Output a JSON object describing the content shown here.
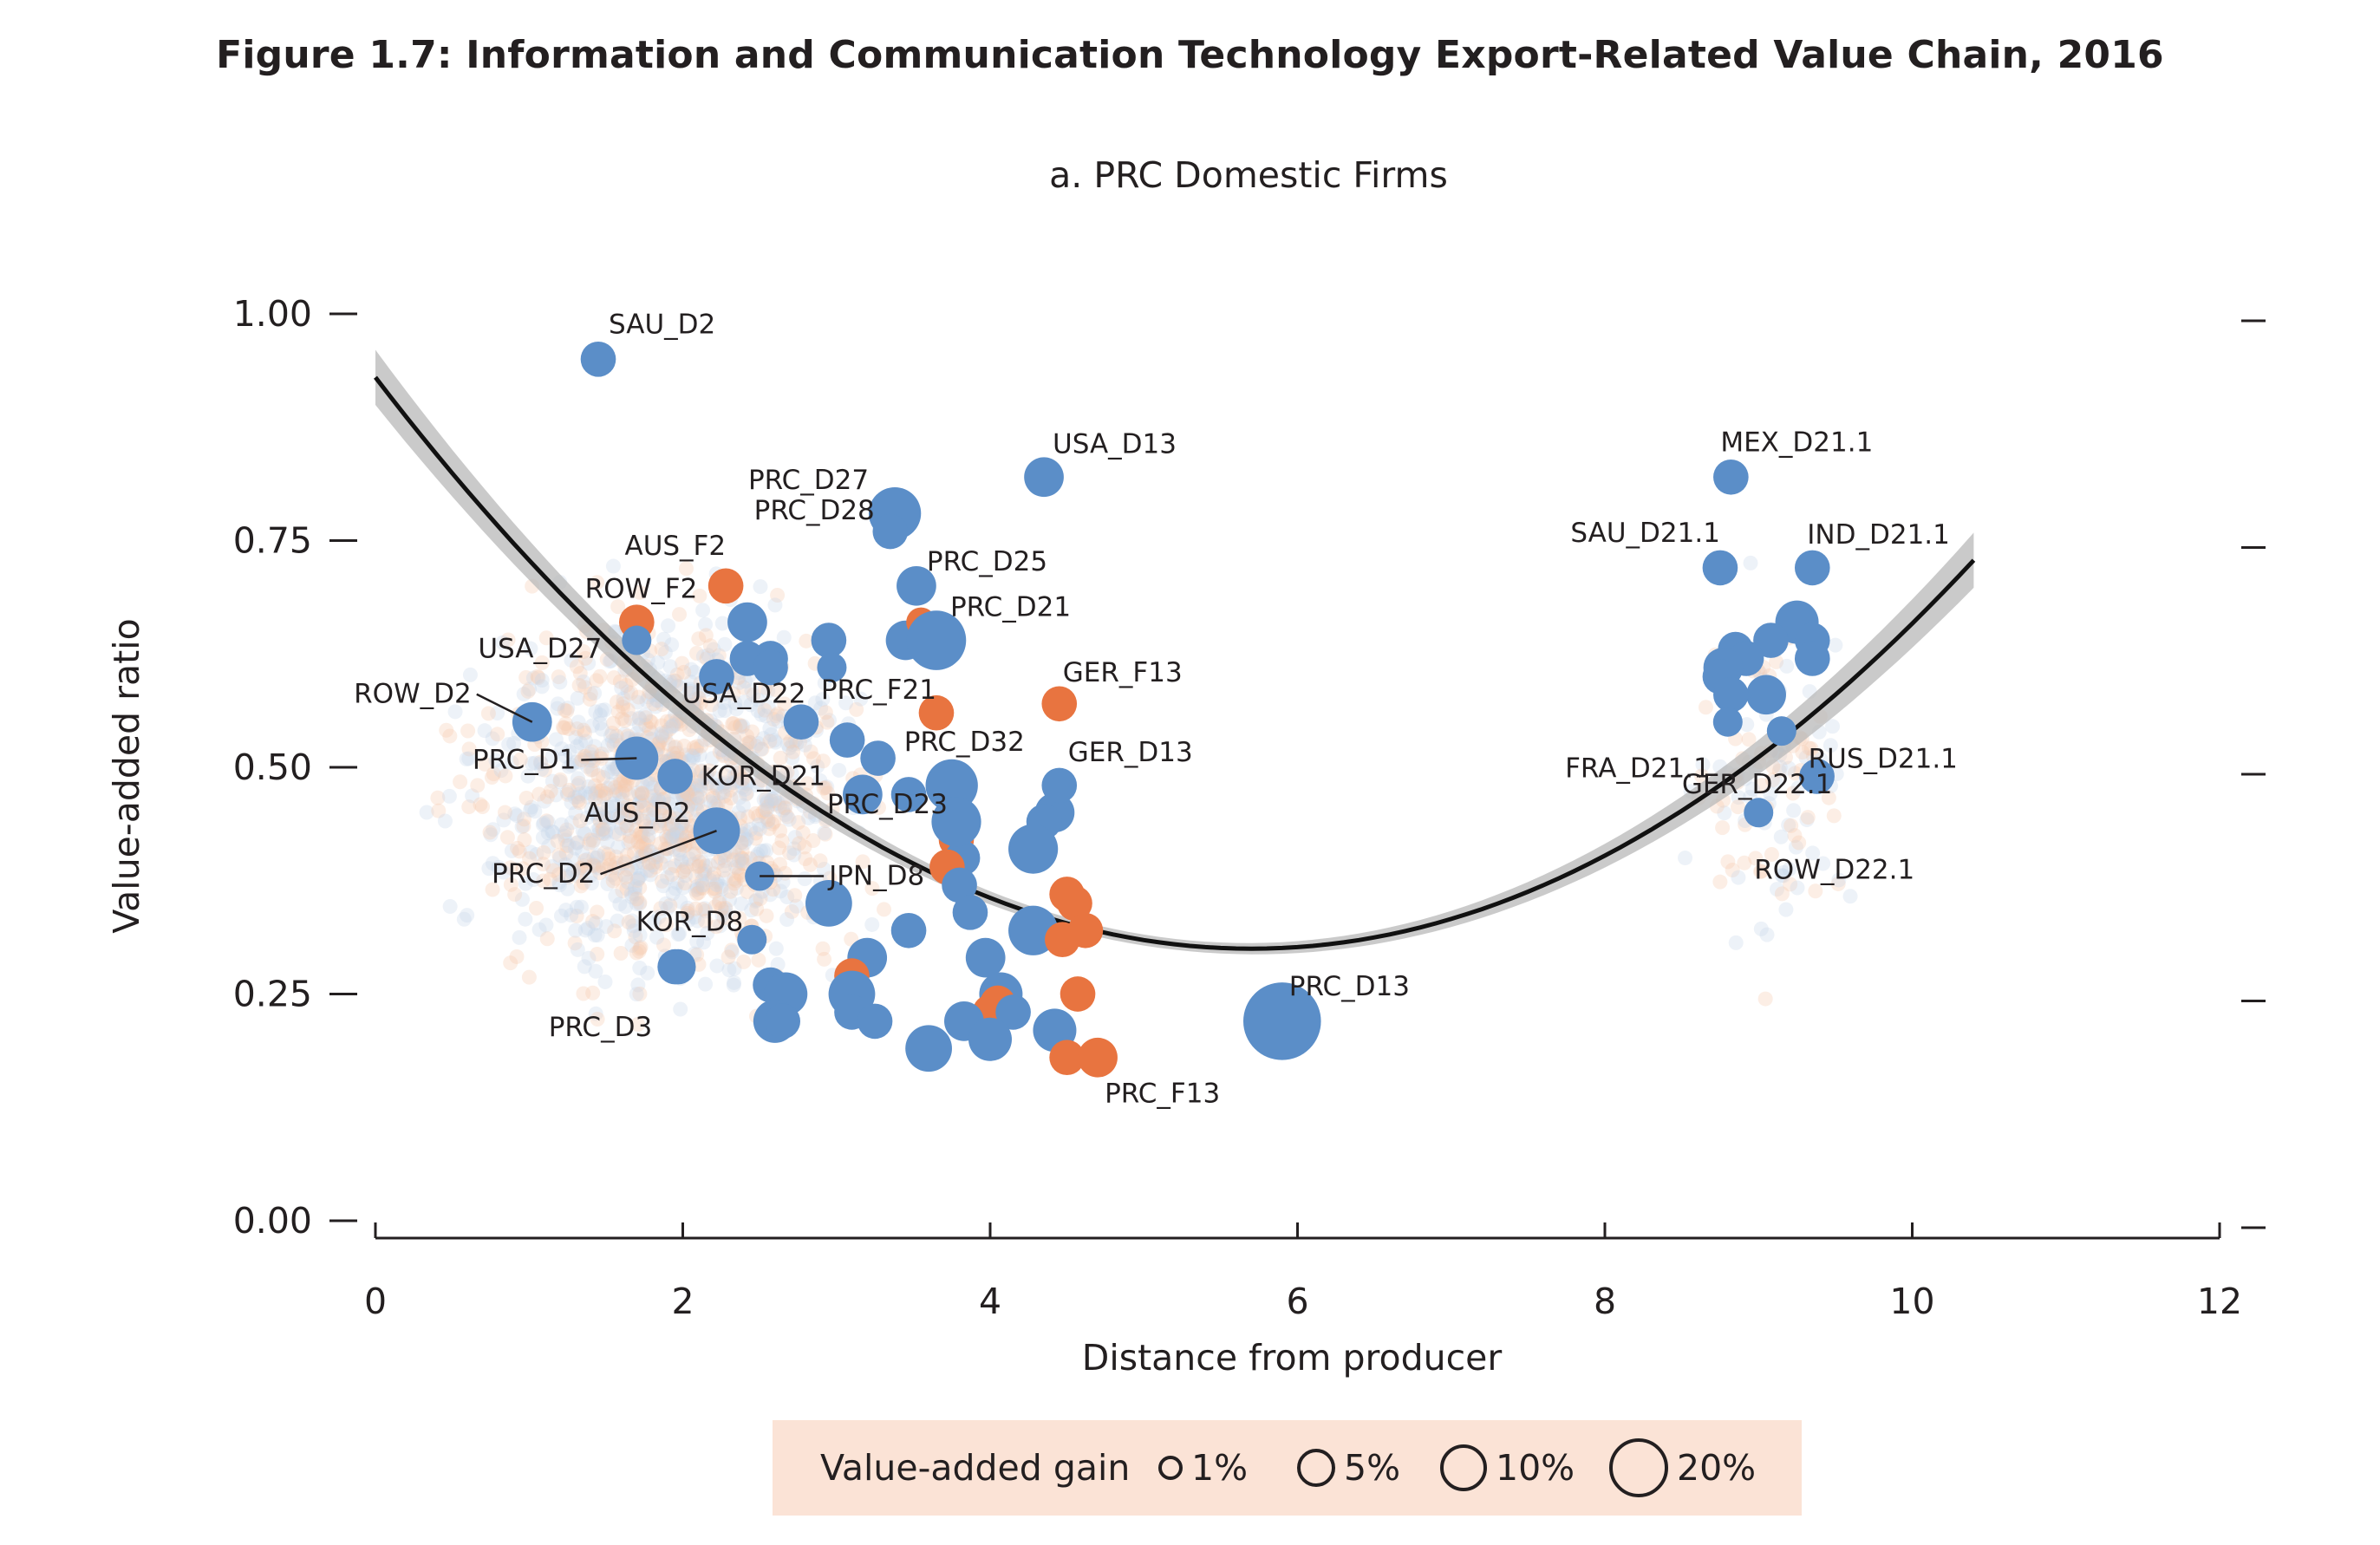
{
  "figure_title": "Figure 1.7: Information and Communication Technology Export-Related Value Chain, 2016",
  "panel_title": "a. PRC Domestic Firms",
  "colors": {
    "highlight_blue": "#5b8ec8",
    "highlight_orange": "#e87440",
    "bg_blue": "#c6d6ea",
    "bg_orange": "#f6c9ae",
    "fit_line": "#111111",
    "ci_band": "#b8b8b8"
  },
  "legend": {
    "title": "Value-added gain",
    "items": [
      {
        "label": "1%"
      },
      {
        "label": "5%"
      },
      {
        "label": "10%"
      },
      {
        "label": "20%"
      }
    ]
  },
  "chart_data": {
    "type": "scatter",
    "xlabel": "Distance from producer",
    "ylabel": "Value-added ratio",
    "xlim": [
      0,
      12
    ],
    "ylim": [
      0,
      1
    ],
    "x_ticks": [
      "0",
      "2",
      "4",
      "6",
      "8",
      "10",
      "12"
    ],
    "y_ticks": [
      "0.00",
      "0.25",
      "0.50",
      "0.75",
      "1.00"
    ],
    "fit_curve": {
      "type": "quadratic",
      "x": [
        0,
        1,
        2,
        3,
        4,
        5,
        5.7,
        6,
        7,
        8,
        9,
        10,
        10.4
      ],
      "y": [
        0.93,
        0.73,
        0.57,
        0.45,
        0.36,
        0.31,
        0.3,
        0.3,
        0.34,
        0.43,
        0.55,
        0.68,
        0.72
      ]
    },
    "points": [
      {
        "label": "SAU_D2",
        "x": 1.45,
        "y": 0.95,
        "gain": 2,
        "color": "blue"
      },
      {
        "label": "USA_D13",
        "x": 4.35,
        "y": 0.82,
        "gain": 3,
        "color": "blue"
      },
      {
        "label": "PRC_D27",
        "x": 3.38,
        "y": 0.78,
        "gain": 7,
        "color": "blue"
      },
      {
        "label": "AUS_F2",
        "x": 2.28,
        "y": 0.7,
        "gain": 2,
        "color": "orange"
      },
      {
        "label": "PRC_D28",
        "x": 3.35,
        "y": 0.76,
        "gain": 2,
        "color": "blue"
      },
      {
        "label": "PRC_D25",
        "x": 3.52,
        "y": 0.7,
        "gain": 3,
        "color": "blue"
      },
      {
        "label": "PRC_D21",
        "x": 3.65,
        "y": 0.64,
        "gain": 10,
        "color": "blue"
      },
      {
        "label": "ROW_F2",
        "x": 1.7,
        "y": 0.66,
        "gain": 2,
        "color": "orange"
      },
      {
        "label": "USA_D27",
        "x": 1.7,
        "y": 0.64,
        "gain": 1,
        "color": "blue"
      },
      {
        "label": "GER_F13",
        "x": 4.45,
        "y": 0.57,
        "gain": 2,
        "color": "orange"
      },
      {
        "label": "PRC_F21",
        "x": 3.65,
        "y": 0.56,
        "gain": 2,
        "color": "orange"
      },
      {
        "label": "ROW_D2",
        "x": 1.02,
        "y": 0.55,
        "gain": 3,
        "color": "blue"
      },
      {
        "label": "USA_D22",
        "x": 2.22,
        "y": 0.6,
        "gain": 2,
        "color": "blue"
      },
      {
        "label": "PRC_D1",
        "x": 1.7,
        "y": 0.51,
        "gain": 4,
        "color": "blue"
      },
      {
        "label": "KOR_D21",
        "x": 1.95,
        "y": 0.49,
        "gain": 2,
        "color": "blue"
      },
      {
        "label": "PRC_D32",
        "x": 3.75,
        "y": 0.48,
        "gain": 7,
        "color": "blue"
      },
      {
        "label": "GER_D13",
        "x": 4.45,
        "y": 0.48,
        "gain": 2,
        "color": "blue"
      },
      {
        "label": "AUS_D2",
        "x": 2.22,
        "y": 0.43,
        "gain": 5,
        "color": "blue"
      },
      {
        "label": "PRC_D23",
        "x": 3.78,
        "y": 0.44,
        "gain": 6,
        "color": "blue"
      },
      {
        "label": "PRC_D2",
        "x": 2.22,
        "y": 0.43,
        "gain": 5,
        "color": "blue"
      },
      {
        "label": "JPN_D8",
        "x": 2.5,
        "y": 0.38,
        "gain": 1,
        "color": "blue"
      },
      {
        "label": "KOR_D8",
        "x": 2.45,
        "y": 0.31,
        "gain": 1,
        "color": "blue"
      },
      {
        "label": "PRC_D3",
        "x": 1.97,
        "y": 0.28,
        "gain": 2,
        "color": "blue"
      },
      {
        "label": "PRC_D13",
        "x": 5.9,
        "y": 0.22,
        "gain": 20,
        "color": "blue"
      },
      {
        "label": "PRC_F13",
        "x": 4.7,
        "y": 0.18,
        "gain": 3,
        "color": "orange"
      },
      {
        "label": "MEX_D21.1",
        "x": 8.82,
        "y": 0.82,
        "gain": 2,
        "color": "blue"
      },
      {
        "label": "SAU_D21.1",
        "x": 8.75,
        "y": 0.72,
        "gain": 2,
        "color": "blue"
      },
      {
        "label": "IND_D21.1",
        "x": 9.35,
        "y": 0.72,
        "gain": 2,
        "color": "blue"
      },
      {
        "label": "FRA_D21.1",
        "x": 8.8,
        "y": 0.55,
        "gain": 1,
        "color": "blue"
      },
      {
        "label": "RUS_D21.1",
        "x": 9.38,
        "y": 0.49,
        "gain": 2,
        "color": "blue"
      },
      {
        "label": "ROW_D22.1",
        "x": 9.0,
        "y": 0.45,
        "gain": 1,
        "color": "blue"
      },
      {
        "label": "GER_D22.1",
        "x": 9.15,
        "y": 0.54,
        "gain": 1,
        "color": "blue"
      }
    ],
    "unlabeled_points": [
      {
        "x": 2.42,
        "y": 0.66,
        "gain": 3,
        "color": "blue"
      },
      {
        "x": 2.57,
        "y": 0.62,
        "gain": 2,
        "color": "blue"
      },
      {
        "x": 2.42,
        "y": 0.62,
        "gain": 2,
        "color": "blue"
      },
      {
        "x": 2.57,
        "y": 0.61,
        "gain": 2,
        "color": "blue"
      },
      {
        "x": 2.95,
        "y": 0.64,
        "gain": 2,
        "color": "blue"
      },
      {
        "x": 2.97,
        "y": 0.61,
        "gain": 1,
        "color": "blue"
      },
      {
        "x": 3.45,
        "y": 0.64,
        "gain": 3,
        "color": "blue"
      },
      {
        "x": 3.55,
        "y": 0.66,
        "gain": 1,
        "color": "orange"
      },
      {
        "x": 2.77,
        "y": 0.55,
        "gain": 2,
        "color": "blue"
      },
      {
        "x": 3.07,
        "y": 0.53,
        "gain": 2,
        "color": "blue"
      },
      {
        "x": 3.27,
        "y": 0.51,
        "gain": 2,
        "color": "blue"
      },
      {
        "x": 3.17,
        "y": 0.47,
        "gain": 3,
        "color": "blue"
      },
      {
        "x": 3.47,
        "y": 0.47,
        "gain": 2,
        "color": "blue"
      },
      {
        "x": 4.42,
        "y": 0.45,
        "gain": 3,
        "color": "blue"
      },
      {
        "x": 4.35,
        "y": 0.44,
        "gain": 2,
        "color": "blue"
      },
      {
        "x": 3.78,
        "y": 0.42,
        "gain": 2,
        "color": "orange"
      },
      {
        "x": 4.28,
        "y": 0.41,
        "gain": 6,
        "color": "blue"
      },
      {
        "x": 3.82,
        "y": 0.4,
        "gain": 2,
        "color": "blue"
      },
      {
        "x": 3.72,
        "y": 0.39,
        "gain": 2,
        "color": "orange"
      },
      {
        "x": 3.8,
        "y": 0.37,
        "gain": 2,
        "color": "blue"
      },
      {
        "x": 4.5,
        "y": 0.36,
        "gain": 2,
        "color": "orange"
      },
      {
        "x": 4.55,
        "y": 0.35,
        "gain": 2,
        "color": "orange"
      },
      {
        "x": 2.95,
        "y": 0.35,
        "gain": 5,
        "color": "blue"
      },
      {
        "x": 3.87,
        "y": 0.34,
        "gain": 2,
        "color": "blue"
      },
      {
        "x": 4.28,
        "y": 0.32,
        "gain": 6,
        "color": "blue"
      },
      {
        "x": 4.62,
        "y": 0.32,
        "gain": 2,
        "color": "orange"
      },
      {
        "x": 4.47,
        "y": 0.31,
        "gain": 2,
        "color": "orange"
      },
      {
        "x": 3.47,
        "y": 0.32,
        "gain": 2,
        "color": "blue"
      },
      {
        "x": 3.2,
        "y": 0.29,
        "gain": 3,
        "color": "blue"
      },
      {
        "x": 3.97,
        "y": 0.29,
        "gain": 3,
        "color": "blue"
      },
      {
        "x": 3.1,
        "y": 0.27,
        "gain": 2,
        "color": "orange"
      },
      {
        "x": 2.57,
        "y": 0.26,
        "gain": 2,
        "color": "blue"
      },
      {
        "x": 3.1,
        "y": 0.25,
        "gain": 5,
        "color": "blue"
      },
      {
        "x": 2.67,
        "y": 0.25,
        "gain": 4,
        "color": "blue"
      },
      {
        "x": 4.57,
        "y": 0.25,
        "gain": 2,
        "color": "orange"
      },
      {
        "x": 4.07,
        "y": 0.25,
        "gain": 4,
        "color": "blue"
      },
      {
        "x": 4.05,
        "y": 0.24,
        "gain": 2,
        "color": "orange"
      },
      {
        "x": 4.0,
        "y": 0.23,
        "gain": 2,
        "color": "orange"
      },
      {
        "x": 3.1,
        "y": 0.23,
        "gain": 2,
        "color": "blue"
      },
      {
        "x": 2.6,
        "y": 0.22,
        "gain": 4,
        "color": "blue"
      },
      {
        "x": 2.65,
        "y": 0.22,
        "gain": 2,
        "color": "blue"
      },
      {
        "x": 3.25,
        "y": 0.22,
        "gain": 2,
        "color": "blue"
      },
      {
        "x": 4.15,
        "y": 0.23,
        "gain": 2,
        "color": "blue"
      },
      {
        "x": 3.83,
        "y": 0.22,
        "gain": 3,
        "color": "blue"
      },
      {
        "x": 4.42,
        "y": 0.21,
        "gain": 4,
        "color": "blue"
      },
      {
        "x": 4.0,
        "y": 0.2,
        "gain": 4,
        "color": "blue"
      },
      {
        "x": 3.6,
        "y": 0.19,
        "gain": 5,
        "color": "blue"
      },
      {
        "x": 4.5,
        "y": 0.18,
        "gain": 2,
        "color": "orange"
      },
      {
        "x": 1.95,
        "y": 0.28,
        "gain": 2,
        "color": "blue"
      },
      {
        "x": 9.25,
        "y": 0.66,
        "gain": 4,
        "color": "blue"
      },
      {
        "x": 9.08,
        "y": 0.64,
        "gain": 2,
        "color": "blue"
      },
      {
        "x": 9.35,
        "y": 0.64,
        "gain": 2,
        "color": "blue"
      },
      {
        "x": 8.85,
        "y": 0.63,
        "gain": 2,
        "color": "blue"
      },
      {
        "x": 8.92,
        "y": 0.62,
        "gain": 2,
        "color": "blue"
      },
      {
        "x": 8.77,
        "y": 0.61,
        "gain": 3,
        "color": "blue"
      },
      {
        "x": 9.35,
        "y": 0.62,
        "gain": 2,
        "color": "blue"
      },
      {
        "x": 8.75,
        "y": 0.6,
        "gain": 2,
        "color": "blue"
      },
      {
        "x": 9.05,
        "y": 0.58,
        "gain": 3,
        "color": "blue"
      },
      {
        "x": 8.82,
        "y": 0.58,
        "gain": 2,
        "color": "blue"
      }
    ]
  }
}
